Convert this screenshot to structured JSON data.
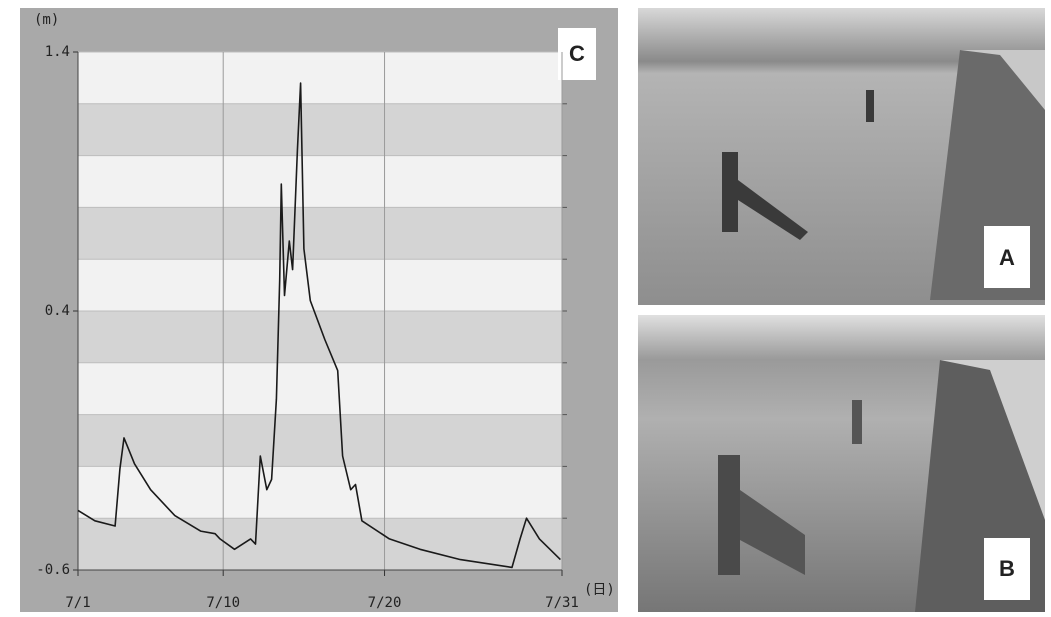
{
  "chart_data": {
    "type": "line",
    "y_label": "(m)",
    "x_label": "(日)",
    "panel_label": "C",
    "x": [
      1,
      2.05,
      3.3,
      3.6,
      3.85,
      4.5,
      5.5,
      7.0,
      8.6,
      9.5,
      9.8,
      10.7,
      11.7,
      12.0,
      12.3,
      12.7,
      13.0,
      13.3,
      13.5,
      13.6,
      13.8,
      14.1,
      14.3,
      14.6,
      14.8,
      15.0,
      15.4,
      16.3,
      17.1,
      17.4,
      17.9,
      18.2,
      18.6,
      20.3,
      22.2,
      24.7,
      27.9,
      28.4,
      28.8,
      29.6,
      30.9
    ],
    "y": [
      -0.37,
      -0.41,
      -0.43,
      -0.21,
      -0.09,
      -0.19,
      -0.29,
      -0.39,
      -0.45,
      -0.46,
      -0.48,
      -0.52,
      -0.48,
      -0.5,
      -0.16,
      -0.29,
      -0.25,
      0.06,
      0.52,
      0.89,
      0.46,
      0.67,
      0.56,
      1.02,
      1.28,
      0.64,
      0.44,
      0.29,
      0.17,
      -0.16,
      -0.29,
      -0.27,
      -0.41,
      -0.48,
      -0.52,
      -0.56,
      -0.59,
      -0.48,
      -0.4,
      -0.48,
      -0.56
    ],
    "color": "#1a1a1a",
    "xlim": [
      1,
      31
    ],
    "ylim": [
      -0.6,
      1.4
    ],
    "xticks": [
      {
        "value": 1,
        "label": "7/1"
      },
      {
        "value": 10,
        "label": "7/10"
      },
      {
        "value": 20,
        "label": "7/20"
      },
      {
        "value": 31,
        "label": "7/31"
      }
    ],
    "yticks": [
      1.4,
      0.4,
      -0.6
    ],
    "grid": true
  },
  "photos": [
    {
      "label": "A"
    },
    {
      "label": "B"
    }
  ]
}
